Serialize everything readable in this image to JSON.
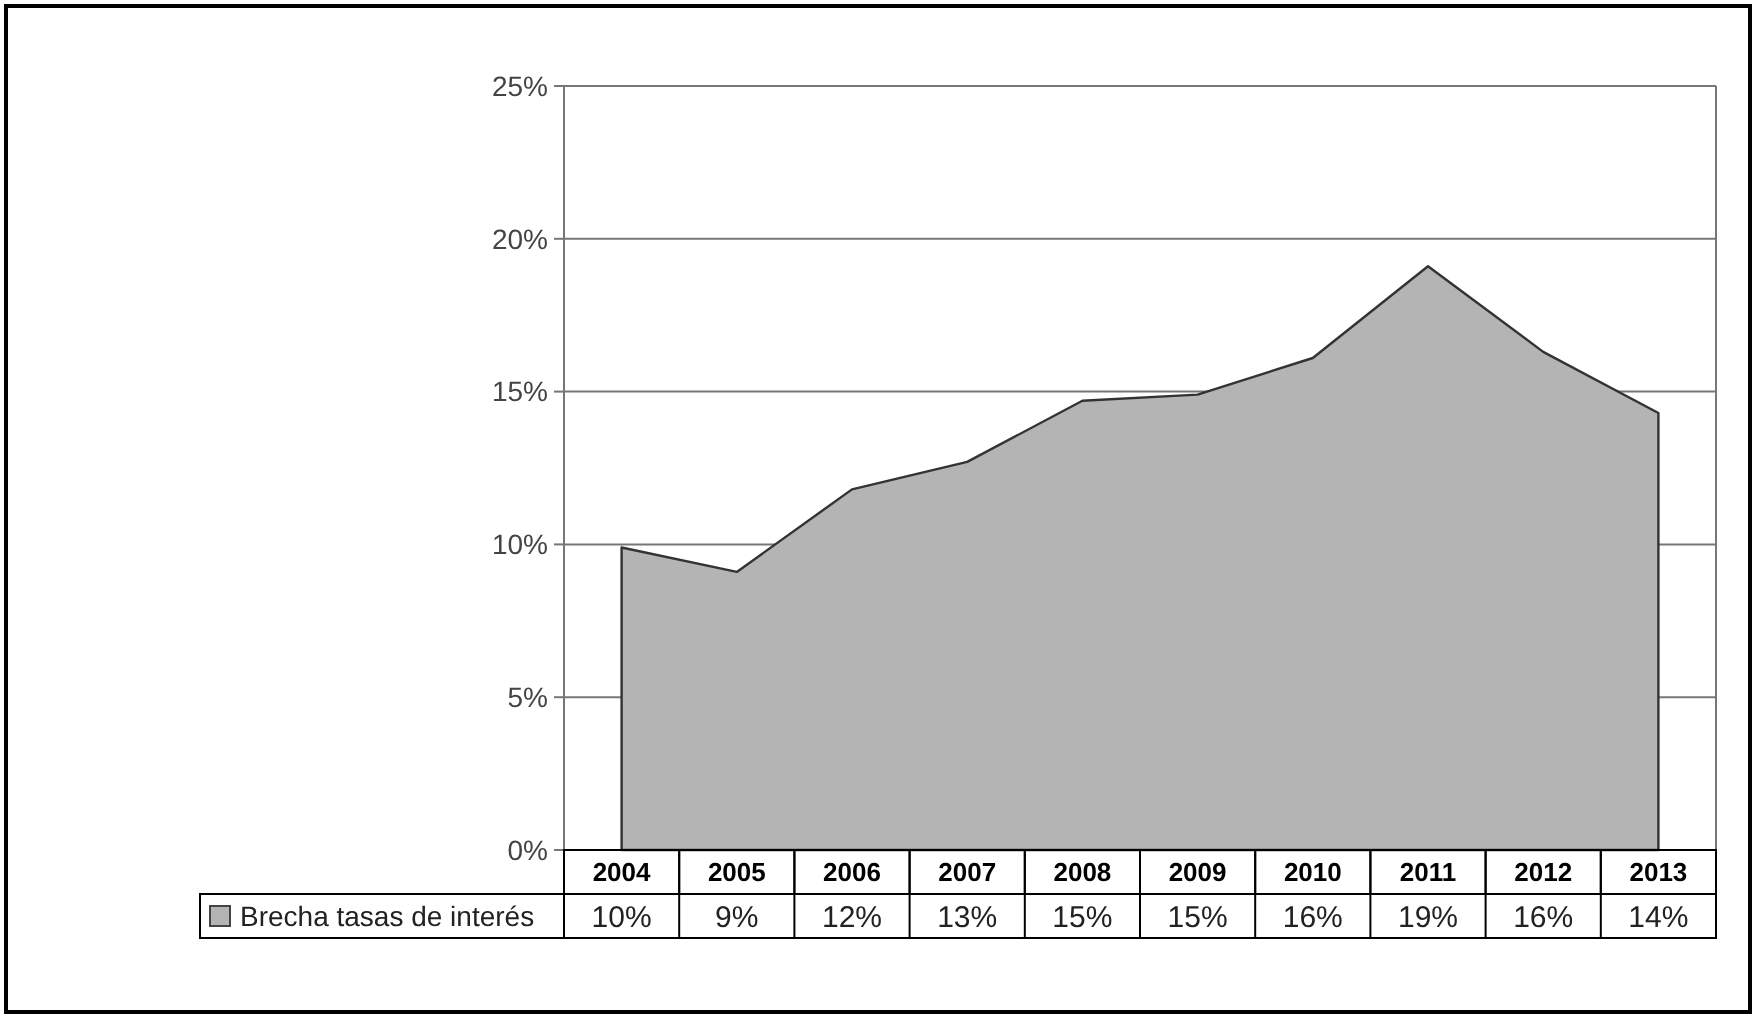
{
  "chart_data": {
    "type": "area",
    "categories": [
      "2004",
      "2005",
      "2006",
      "2007",
      "2008",
      "2009",
      "2010",
      "2011",
      "2012",
      "2013"
    ],
    "series": [
      {
        "name": "Brecha tasas de interés",
        "color": "#b4b4b4",
        "values": [
          9.9,
          9.1,
          11.8,
          12.7,
          14.7,
          14.9,
          16.1,
          19.1,
          16.3,
          14.3
        ],
        "value_labels": [
          "10%",
          "9%",
          "12%",
          "13%",
          "15%",
          "15%",
          "16%",
          "19%",
          "16%",
          "14%"
        ]
      }
    ],
    "ylim": [
      0,
      25
    ],
    "yticks": [
      {
        "value": 0,
        "label": "0%"
      },
      {
        "value": 5,
        "label": "5%"
      },
      {
        "value": 10,
        "label": "10%"
      },
      {
        "value": 15,
        "label": "15%"
      },
      {
        "value": 20,
        "label": "20%"
      },
      {
        "value": 25,
        "label": "25%"
      }
    ],
    "grid": "y",
    "legend": "bottom"
  }
}
